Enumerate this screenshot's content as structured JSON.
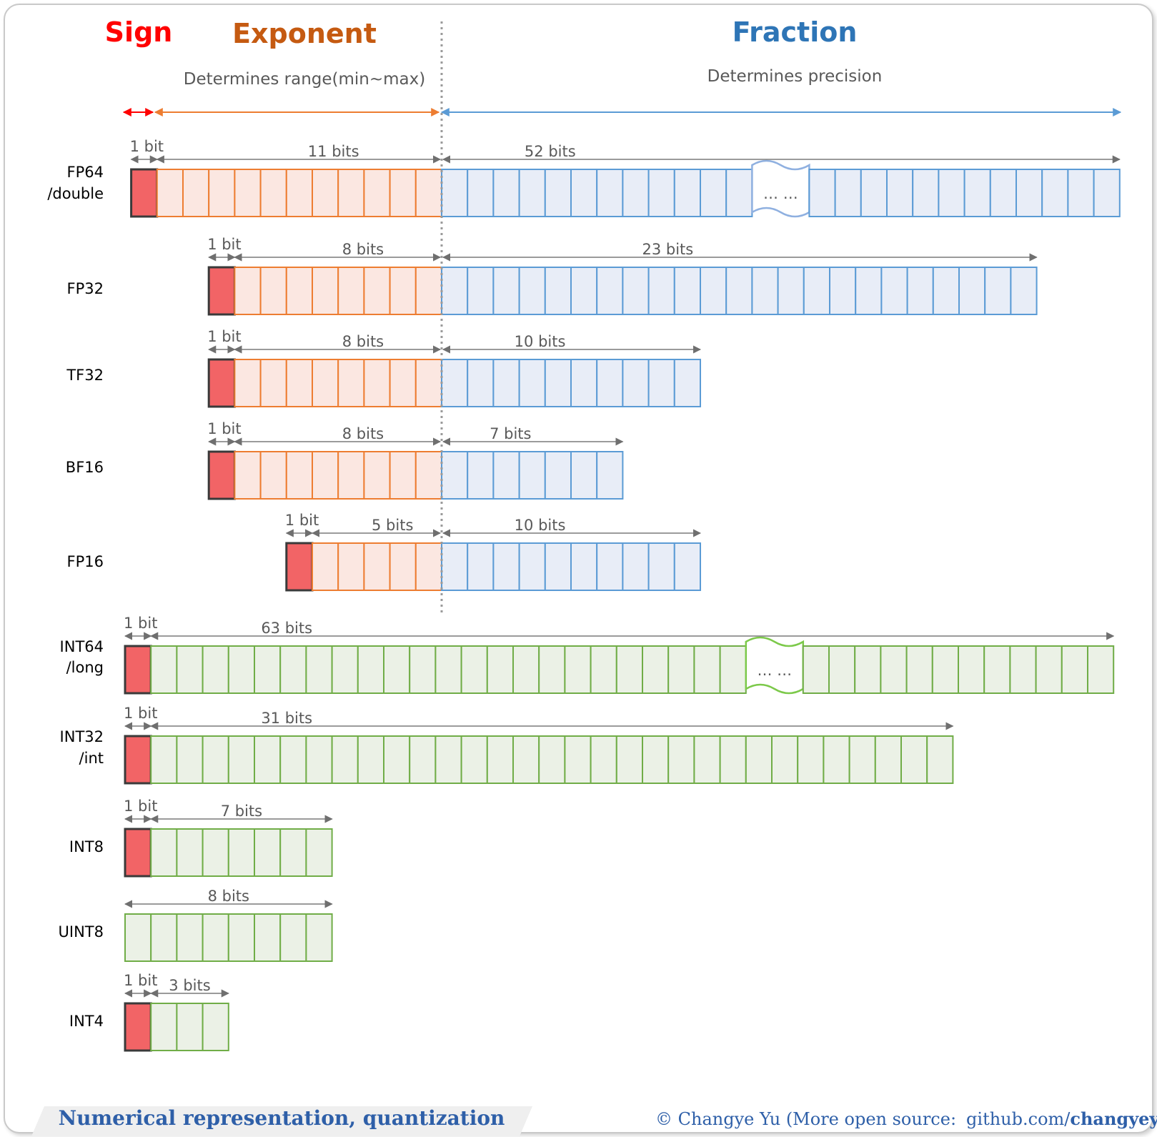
{
  "headers": {
    "sign": "Sign",
    "exponent": "Exponent",
    "fraction": "Fraction",
    "exponent_note": "Determines range(min~max)",
    "fraction_note": "Determines precision"
  },
  "colors": {
    "sign_fill": "#f26466",
    "sign_stroke": "#3a3a3a",
    "exponent_fill": "#fbe7e1",
    "exponent_stroke": "#ed7d31",
    "fraction_fill": "#e8edf7",
    "fraction_stroke": "#5b9bd5",
    "int_fill": "#ebf1e6",
    "int_stroke": "#70ad47",
    "sign_header": "#ff0000",
    "exponent_header": "#c55a11",
    "fraction_header": "#2e75b6",
    "footer_text": "#2e5fa8"
  },
  "formats": [
    {
      "name": "FP64",
      "alias": "/double",
      "sign_label": "1 bit",
      "exponent_label": "11 bits",
      "fraction_label": "52 bits",
      "sign_bits": 1,
      "exponent_bits": 11,
      "fraction_bits": 52,
      "elided": true,
      "ellipsis": "… …"
    },
    {
      "name": "FP32",
      "alias": "",
      "sign_label": "1 bit",
      "exponent_label": "8 bits",
      "fraction_label": "23 bits",
      "sign_bits": 1,
      "exponent_bits": 8,
      "fraction_bits": 23,
      "elided": false
    },
    {
      "name": "TF32",
      "alias": "",
      "sign_label": "1 bit",
      "exponent_label": "8 bits",
      "fraction_label": "10 bits",
      "sign_bits": 1,
      "exponent_bits": 8,
      "fraction_bits": 10,
      "elided": false
    },
    {
      "name": "BF16",
      "alias": "",
      "sign_label": "1 bit",
      "exponent_label": "8 bits",
      "fraction_label": "7 bits",
      "sign_bits": 1,
      "exponent_bits": 8,
      "fraction_bits": 7,
      "elided": false
    },
    {
      "name": "FP16",
      "alias": "",
      "sign_label": "1 bit",
      "exponent_label": "5 bits",
      "fraction_label": "10 bits",
      "sign_bits": 1,
      "exponent_bits": 5,
      "fraction_bits": 10,
      "elided": false
    },
    {
      "name": "INT64",
      "alias": "/long",
      "sign_label": "1 bit",
      "value_label": "63 bits",
      "sign_bits": 1,
      "value_bits": 63,
      "elided": true,
      "ellipsis": "… …"
    },
    {
      "name": "INT32",
      "alias": "/int",
      "sign_label": "1 bit",
      "value_label": "31 bits",
      "sign_bits": 1,
      "value_bits": 31,
      "elided": false
    },
    {
      "name": "INT8",
      "alias": "",
      "sign_label": "1 bit",
      "value_label": "7 bits",
      "sign_bits": 1,
      "value_bits": 7,
      "elided": false
    },
    {
      "name": "UINT8",
      "alias": "",
      "sign_label": "",
      "value_label": "8 bits",
      "sign_bits": 0,
      "value_bits": 8,
      "elided": false
    },
    {
      "name": "INT4",
      "alias": "",
      "sign_label": "1 bit",
      "value_label": "3 bits",
      "sign_bits": 1,
      "value_bits": 3,
      "elided": false
    }
  ],
  "footer": {
    "title": "Numerical representation, quantization",
    "credit": "© Changye Yu  (More open source:",
    "link_prefix": "github.com/",
    "link_user": "changyeyu",
    "close": ")"
  }
}
